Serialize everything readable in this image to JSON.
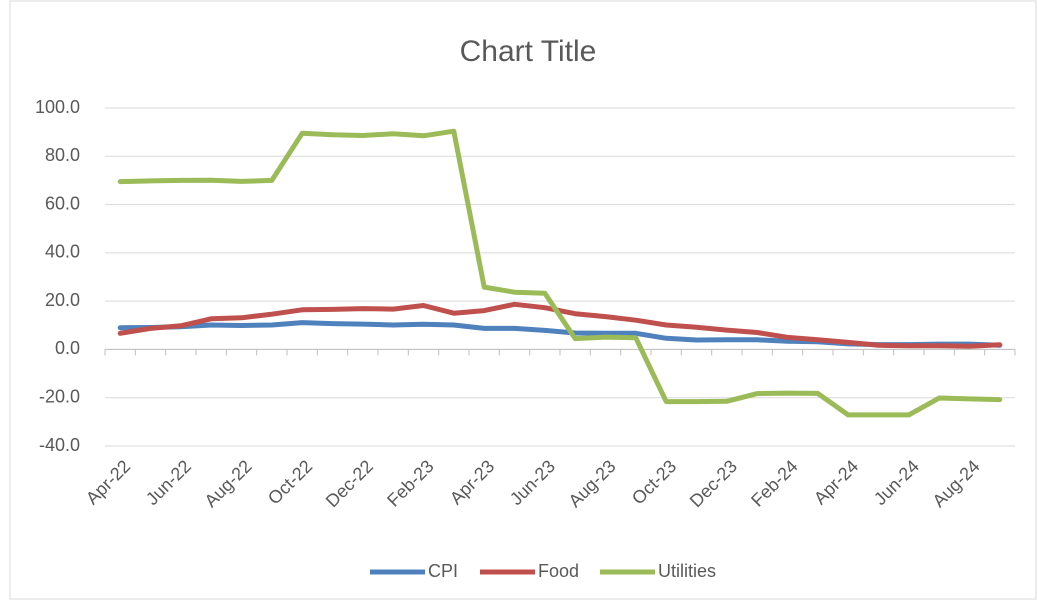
{
  "chart_data": {
    "type": "line",
    "title": "Chart Title",
    "categories": [
      "Apr-22",
      null,
      "Jun-22",
      null,
      "Aug-22",
      null,
      "Oct-22",
      null,
      "Dec-22",
      null,
      "Feb-23",
      null,
      "Apr-23",
      null,
      "Jun-23",
      null,
      "Aug-23",
      null,
      "Oct-23",
      null,
      "Dec-23",
      null,
      "Feb-24",
      null,
      "Apr-24",
      null,
      "Jun-24",
      null,
      "Aug-24",
      null
    ],
    "series": [
      {
        "name": "CPI",
        "color": "#4f81bd",
        "values": [
          9.0,
          9.1,
          9.4,
          10.1,
          9.9,
          10.1,
          11.1,
          10.7,
          10.5,
          10.1,
          10.4,
          10.1,
          8.7,
          8.7,
          7.9,
          6.8,
          6.7,
          6.7,
          4.6,
          3.9,
          4.0,
          4.0,
          3.4,
          3.2,
          2.3,
          2.0,
          2.0,
          2.2,
          2.2,
          1.7
        ]
      },
      {
        "name": "Food",
        "color": "#c0504d",
        "values": [
          6.7,
          8.7,
          9.8,
          12.7,
          13.1,
          14.6,
          16.4,
          16.6,
          16.9,
          16.7,
          18.2,
          15.0,
          16.1,
          18.7,
          17.3,
          14.8,
          13.6,
          12.1,
          10.1,
          9.2,
          8.0,
          7.0,
          5.0,
          4.0,
          2.9,
          1.7,
          1.5,
          1.5,
          1.3,
          1.9
        ]
      },
      {
        "name": "Utilities",
        "color": "#9bbb59",
        "values": [
          69.5,
          69.8,
          70.0,
          70.1,
          69.6,
          70.0,
          89.5,
          88.9,
          88.6,
          89.3,
          88.5,
          90.4,
          25.8,
          23.7,
          23.3,
          4.5,
          5.1,
          4.8,
          -21.6,
          -21.6,
          -21.5,
          -18.3,
          -18.1,
          -18.2,
          -27.1,
          -27.1,
          -27.1,
          -20.1,
          -20.5,
          -20.8
        ]
      }
    ],
    "ylim": [
      -40,
      100
    ],
    "yticks": [
      {
        "value": -40,
        "label": "-40.0"
      },
      {
        "value": -20,
        "label": "-20.0"
      },
      {
        "value": 0,
        "label": "0.0"
      },
      {
        "value": 20,
        "label": "20.0"
      },
      {
        "value": 40,
        "label": "40.0"
      },
      {
        "value": 60,
        "label": "60.0"
      },
      {
        "value": 80,
        "label": "80.0"
      },
      {
        "value": 100,
        "label": "100.0"
      }
    ],
    "grid": true,
    "legend": "bottom"
  }
}
